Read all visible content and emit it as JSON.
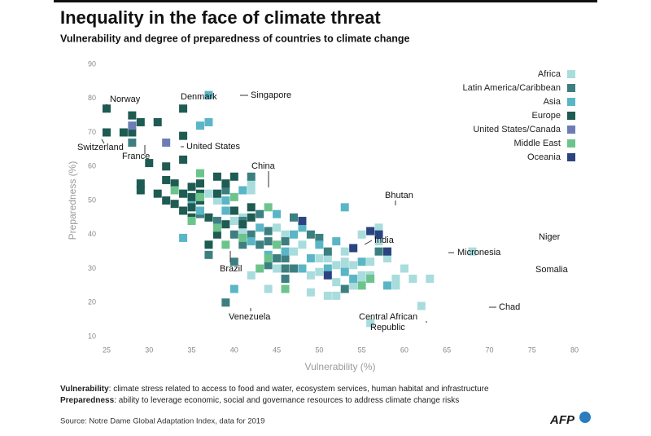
{
  "chart_data": {
    "type": "scatter",
    "title": "Inequality in the face of climate threat",
    "subtitle": "Vulnerability and degree of preparedness of countries to climate change",
    "x_label": "Vulnerability (%)",
    "y_label": "Preparedness (%)",
    "xlim": [
      25,
      80
    ],
    "ylim": [
      10,
      90
    ],
    "xticks": [
      25,
      30,
      35,
      40,
      45,
      50,
      55,
      60,
      65,
      70,
      75,
      80
    ],
    "yticks": [
      10,
      20,
      30,
      40,
      50,
      60,
      70,
      80,
      90
    ],
    "legend": "upper right",
    "series": [
      {
        "name": "Africa",
        "color": "#a9dcdc",
        "x": [
          37,
          38,
          40,
          41,
          42,
          42,
          41,
          42,
          44,
          45,
          45,
          46,
          47,
          48,
          48,
          49,
          50,
          51,
          52,
          52,
          53,
          53,
          54,
          55,
          56,
          56,
          55,
          57,
          58,
          59,
          59,
          60,
          61,
          62,
          63,
          68,
          56,
          51,
          52,
          54,
          49,
          50,
          57,
          55,
          54,
          53
        ],
        "values": [
          52,
          50,
          44,
          45,
          55,
          53,
          41,
          28,
          24,
          42,
          30,
          40,
          35,
          37,
          30,
          23,
          33,
          33,
          31,
          26,
          30,
          35,
          31,
          28,
          28,
          32,
          40,
          42,
          33,
          27,
          25,
          30,
          27,
          19,
          27,
          35,
          14,
          22,
          22,
          36,
          28,
          29,
          38,
          27,
          25,
          32
        ]
      },
      {
        "name": "Latin America/Caribbean",
        "color": "#3d7f81",
        "x": [
          28,
          36,
          39,
          42,
          41,
          40,
          42,
          40,
          43,
          44,
          44,
          46,
          46,
          46,
          47,
          49,
          47,
          50,
          51,
          53,
          57,
          40,
          39,
          37,
          43,
          45,
          41,
          46,
          44,
          38
        ],
        "values": [
          67,
          46,
          20,
          57,
          44,
          40,
          40,
          32,
          46,
          31,
          38,
          38,
          30,
          33,
          45,
          40,
          30,
          39,
          35,
          24,
          35,
          47,
          53,
          34,
          37,
          33,
          37,
          27,
          41,
          44
        ]
      },
      {
        "name": "Asia",
        "color": "#5ab6c6",
        "x": [
          37,
          36,
          37,
          34,
          35,
          36,
          34,
          39,
          39,
          41,
          43,
          45,
          47,
          48,
          50,
          53,
          52,
          54,
          57,
          58,
          48,
          55,
          40,
          42,
          44,
          46,
          49,
          51,
          53
        ],
        "values": [
          81,
          72,
          73,
          52,
          50,
          47,
          39,
          50,
          47,
          53,
          42,
          46,
          40,
          42,
          37,
          48,
          38,
          27,
          40,
          25,
          30,
          32,
          24,
          38,
          34,
          35,
          33,
          30,
          29
        ]
      },
      {
        "name": "Europe",
        "color": "#1e5b52",
        "x": [
          25,
          25,
          27,
          28,
          29,
          28,
          31,
          34,
          30,
          29,
          29,
          31,
          32,
          32,
          33,
          32,
          34,
          34,
          35,
          35,
          36,
          35,
          34,
          34,
          36,
          38,
          38,
          39,
          37,
          37,
          40,
          39,
          38,
          40,
          41,
          42,
          42,
          35,
          36,
          33
        ],
        "values": [
          77,
          70,
          70,
          75,
          73,
          70,
          73,
          77,
          61,
          55,
          53,
          52,
          60,
          56,
          55,
          50,
          52,
          47,
          51,
          48,
          50,
          45,
          62,
          69,
          52,
          57,
          52,
          55,
          45,
          37,
          57,
          43,
          40,
          47,
          43,
          45,
          48,
          54,
          55,
          49
        ]
      },
      {
        "name": "United States/Canada",
        "color": "#6c7db6",
        "x": [
          32,
          28
        ],
        "values": [
          67,
          72
        ]
      },
      {
        "name": "Middle East",
        "color": "#6cc48c",
        "x": [
          36,
          36,
          35,
          38,
          39,
          40,
          41,
          44,
          44,
          43,
          46,
          45,
          56,
          55,
          33
        ],
        "values": [
          58,
          51,
          44,
          42,
          37,
          51,
          39,
          48,
          33,
          30,
          24,
          37,
          27,
          25,
          53
        ]
      },
      {
        "name": "Oceania",
        "color": "#2b4480",
        "x": [
          48,
          54,
          57,
          58,
          51,
          56
        ],
        "values": [
          44,
          36,
          40,
          35,
          28,
          41
        ]
      }
    ],
    "annotations": [
      "Norway",
      "Denmark",
      "Singapore",
      "Switzerland",
      "France",
      "United States",
      "China",
      "Bhutan",
      "India",
      "Micronesia",
      "Niger",
      "Somalia",
      "Chad",
      "Brazil",
      "Venezuela",
      "Central African\nRepublic"
    ],
    "notes": [
      {
        "term": "Vulnerability",
        "text": ": climate stress related to access to food and water, ecosystem services, human habitat and infrastructure"
      },
      {
        "term": "Preparedness",
        "text": ": ability to leverage economic, social and governance resources to address climate change risks"
      }
    ],
    "source": "Source: Notre Dame Global Adaptation Index, data for 2019",
    "logo": "AFP"
  }
}
